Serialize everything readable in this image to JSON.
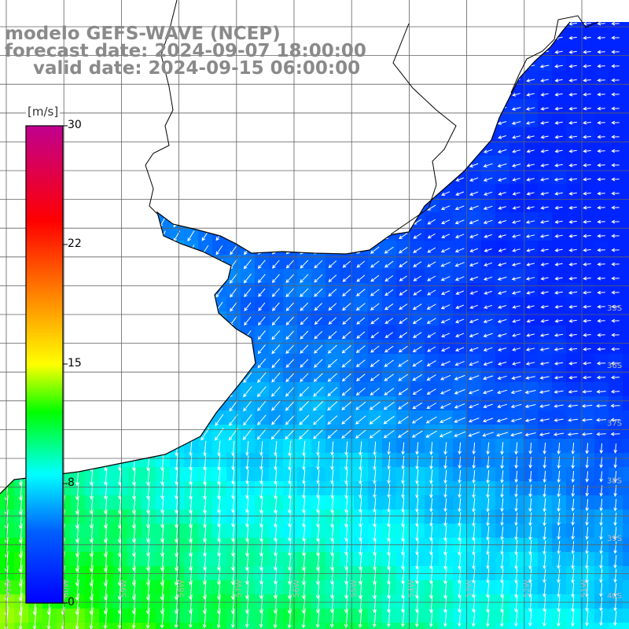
{
  "title": {
    "line1": "modelo GEFS-WAVE (NCEP)",
    "line2": "forecast date: 2024-09-07 18:00:00",
    "line3": "valid date: 2024-09-15 06:00:00"
  },
  "colorbar": {
    "unit": "[m/s]",
    "ticks": [
      "30",
      "22",
      "15",
      "8",
      "0"
    ],
    "tick_values": [
      30,
      22,
      15,
      8,
      0
    ],
    "range": [
      0,
      30
    ],
    "colors": [
      "#0000ff",
      "#0090ff",
      "#00ffff",
      "#00ff00",
      "#ffff00",
      "#ff8000",
      "#ff0000",
      "#c00080"
    ]
  },
  "map": {
    "lon_labels": [
      "61W",
      "60W",
      "59W",
      "58W",
      "57W",
      "56W",
      "55W",
      "54W",
      "53W",
      "52W",
      "51W"
    ],
    "lat_labels": [
      "35S",
      "36S",
      "37S",
      "38S",
      "39S",
      "40S"
    ],
    "field": "wind speed and direction",
    "palette": {
      "land": "#ffffff",
      "coast": "#000000",
      "grid": "#606060",
      "arrow": "#ffffff"
    }
  }
}
